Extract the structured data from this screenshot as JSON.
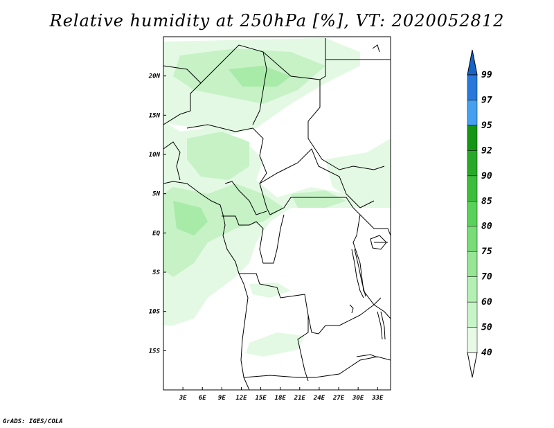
{
  "title": "Relative humidity at 250hPa [%], VT: 2020052812",
  "credit": "GrADS: IGES/COLA",
  "map": {
    "lon_range": [
      0,
      35
    ],
    "lat_range": [
      -20,
      25
    ],
    "lon_ticks": [
      "3E",
      "6E",
      "9E",
      "12E",
      "15E",
      "18E",
      "21E",
      "24E",
      "27E",
      "30E",
      "33E"
    ],
    "lat_ticks": [
      "20N",
      "15N",
      "10N",
      "5N",
      "EQ",
      "5S",
      "10S",
      "15S"
    ]
  },
  "colorbar": {
    "levels": [
      "40",
      "50",
      "60",
      "70",
      "75",
      "80",
      "85",
      "90",
      "92",
      "95",
      "97",
      "99"
    ],
    "colors": [
      "#ffffff",
      "#e6fae6",
      "#c8f5c8",
      "#b4f0b4",
      "#96e696",
      "#78dc78",
      "#5ad25a",
      "#3cbe3c",
      "#28aa28",
      "#149614",
      "#46a0f0",
      "#2878dc",
      "#1464c8"
    ]
  },
  "colors": {
    "light_green": "#e3f9e3",
    "mid_green": "#c6f2c6",
    "green": "#a8eaa8"
  }
}
